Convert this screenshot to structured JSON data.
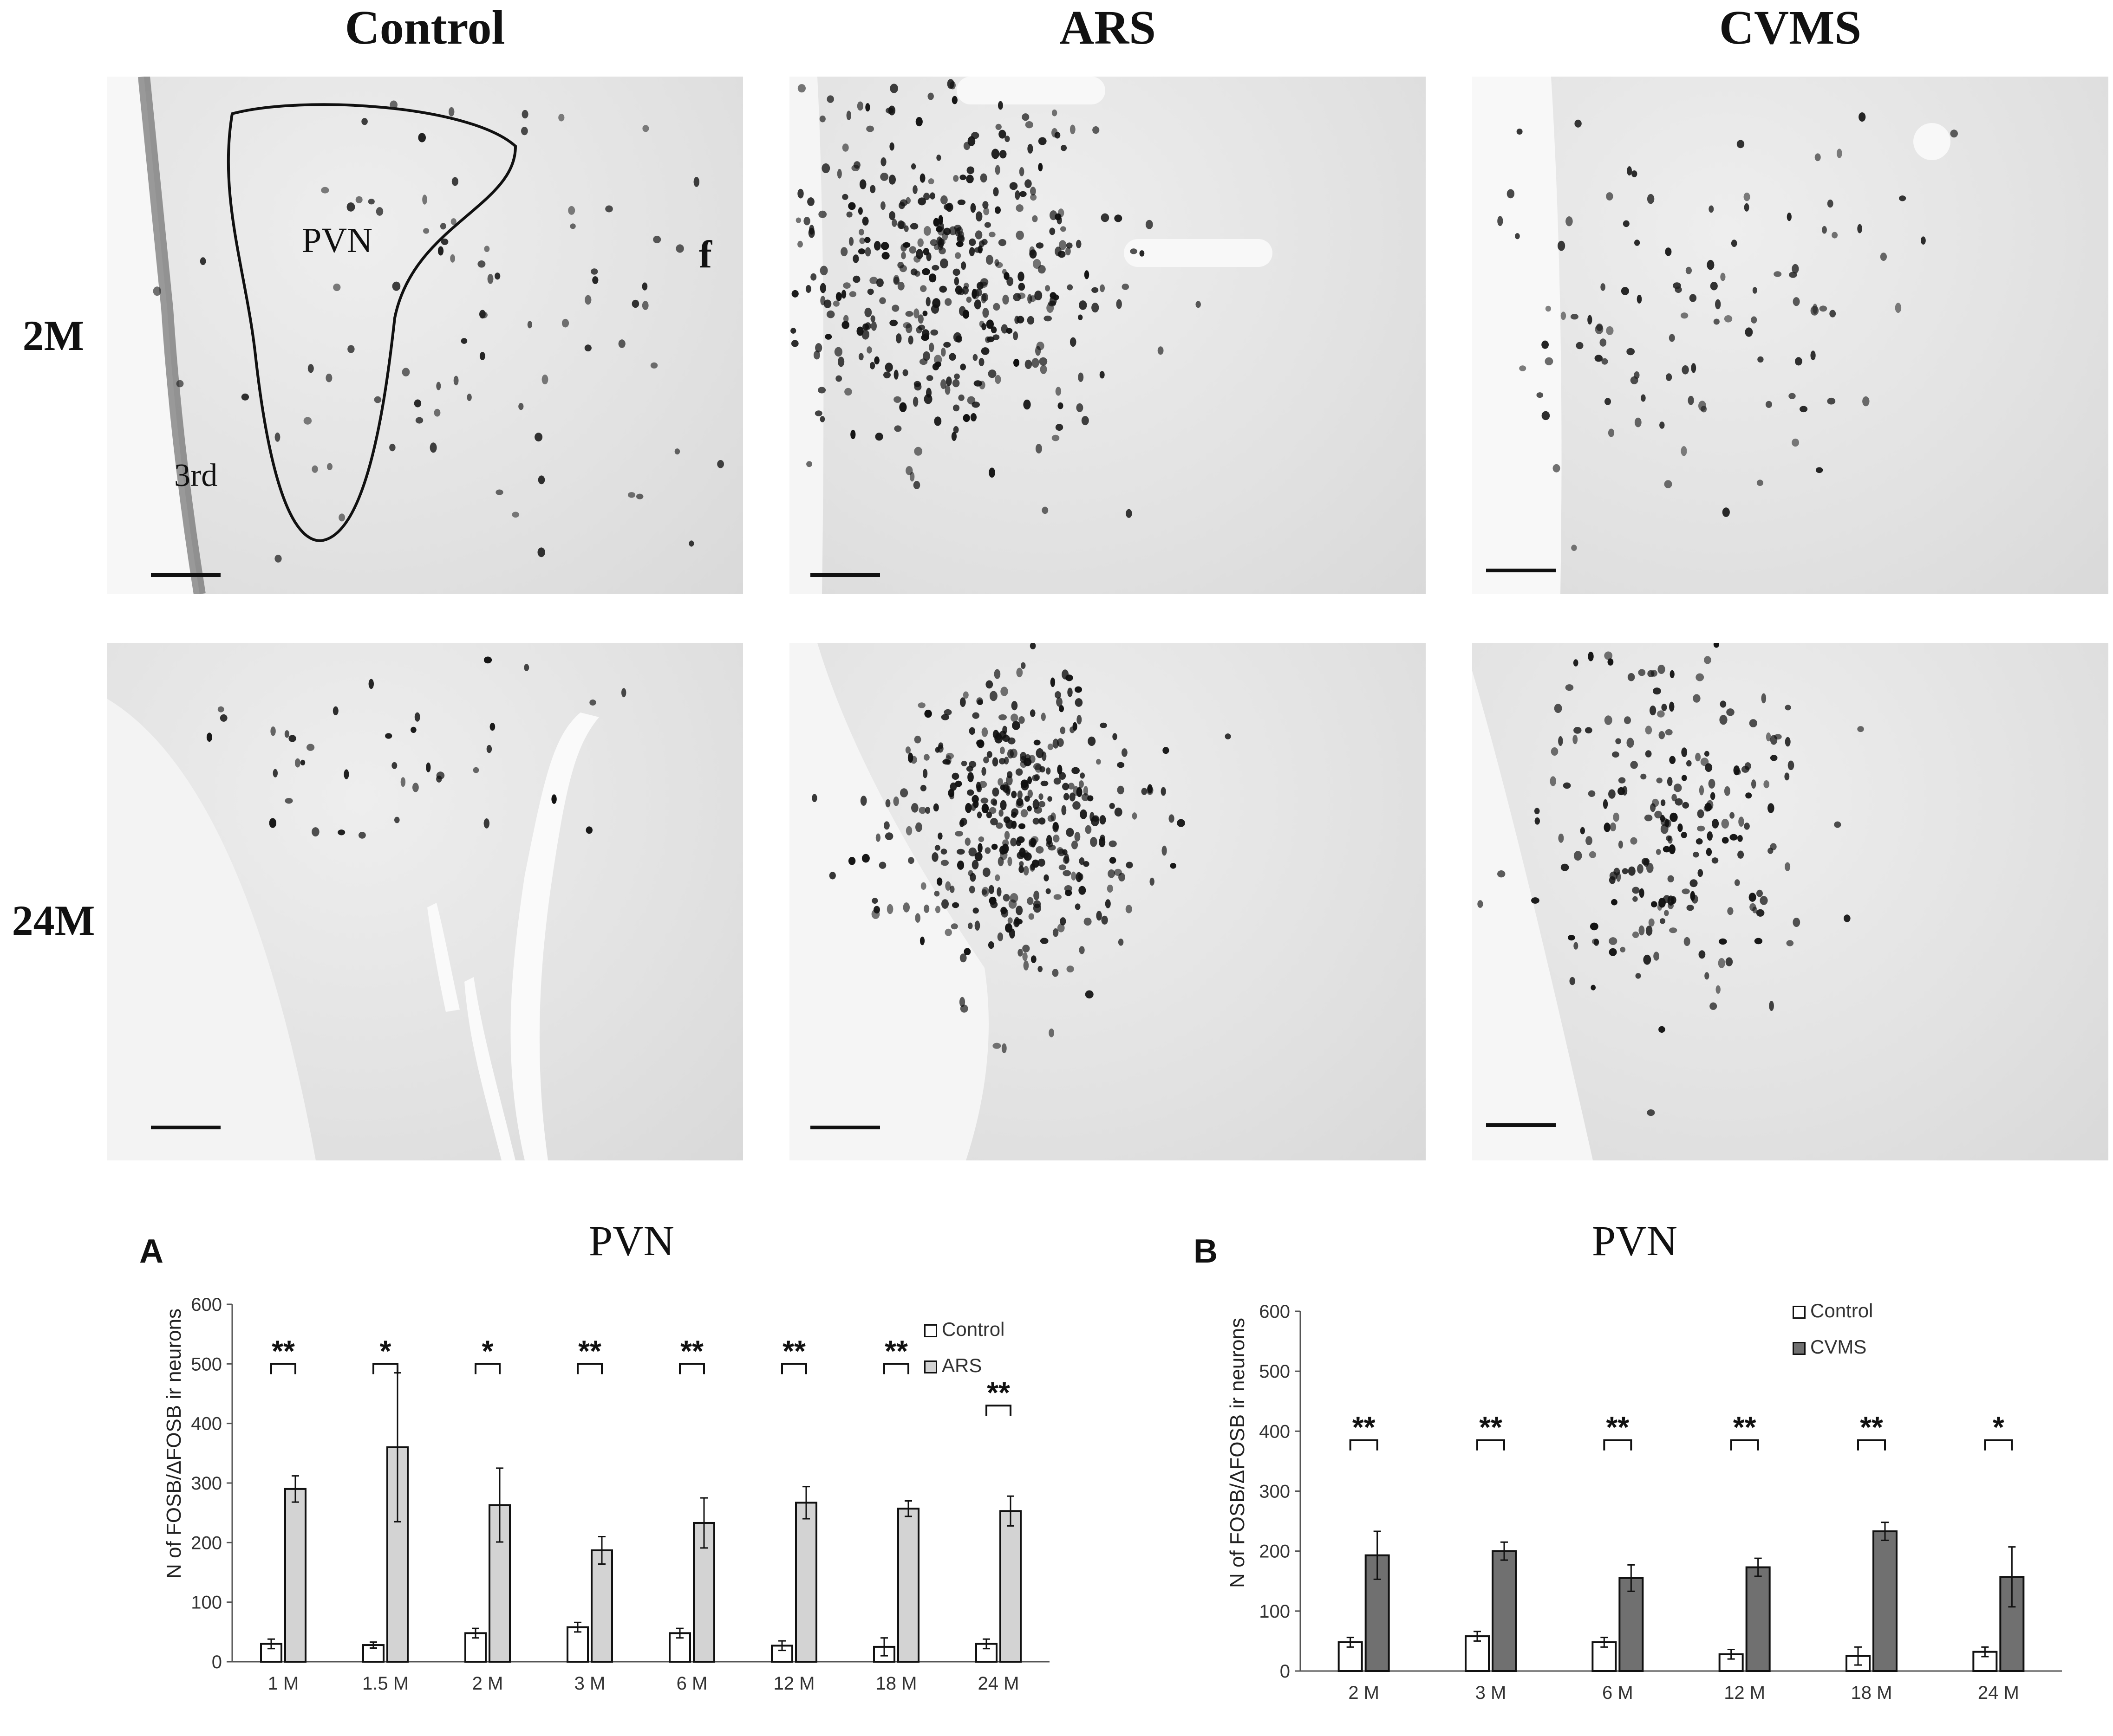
{
  "figure": {
    "column_titles": [
      "Control",
      "ARS",
      "CVMS"
    ],
    "row_titles": [
      "2M",
      "24M"
    ],
    "micro_labels": {
      "pvn": "PVN",
      "f": "f",
      "third": "3rd"
    }
  },
  "colors": {
    "control_fill": "#ffffff",
    "ars_fill": "#d3d3d3",
    "cvms_fill": "#707070",
    "stroke": "#111111"
  },
  "chart_data": [
    {
      "panel": "A",
      "type": "bar",
      "title": "PVN",
      "ylabel": "N of FOSB/ΔFOSB ir neurons",
      "xlabel": "",
      "ylim": [
        0,
        600
      ],
      "yticks": [
        0,
        100,
        200,
        300,
        400,
        500,
        600
      ],
      "categories": [
        "1 M",
        "1.5 M",
        "2 M",
        "3 M",
        "6 M",
        "12 M",
        "18 M",
        "24 M"
      ],
      "series": [
        {
          "name": "Control",
          "values": [
            30,
            28,
            48,
            58,
            48,
            27,
            25,
            30
          ],
          "errors": [
            8,
            5,
            8,
            8,
            8,
            8,
            15,
            8
          ]
        },
        {
          "name": "ARS",
          "values": [
            290,
            360,
            263,
            187,
            233,
            267,
            257,
            253
          ],
          "errors": [
            22,
            125,
            62,
            23,
            42,
            27,
            13,
            25
          ]
        }
      ],
      "significance": [
        "**",
        "*",
        "*",
        "**",
        "**",
        "**",
        "**",
        "**"
      ],
      "legend": "top-right",
      "grid": false
    },
    {
      "panel": "B",
      "type": "bar",
      "title": "PVN",
      "ylabel": "N of FOSB/ΔFOSB ir neurons",
      "xlabel": "",
      "ylim": [
        0,
        600
      ],
      "yticks": [
        0,
        100,
        200,
        300,
        400,
        500,
        600
      ],
      "categories": [
        "2 M",
        "3 M",
        "6 M",
        "12 M",
        "18 M",
        "24 M"
      ],
      "series": [
        {
          "name": "Control",
          "values": [
            48,
            58,
            48,
            28,
            25,
            32
          ],
          "errors": [
            8,
            8,
            8,
            8,
            15,
            8
          ]
        },
        {
          "name": "CVMS",
          "values": [
            193,
            200,
            155,
            173,
            233,
            157
          ],
          "errors": [
            40,
            15,
            22,
            15,
            15,
            50
          ]
        }
      ],
      "significance": [
        "**",
        "**",
        "**",
        "**",
        "**",
        "*"
      ],
      "legend": "top-right",
      "grid": false
    }
  ]
}
